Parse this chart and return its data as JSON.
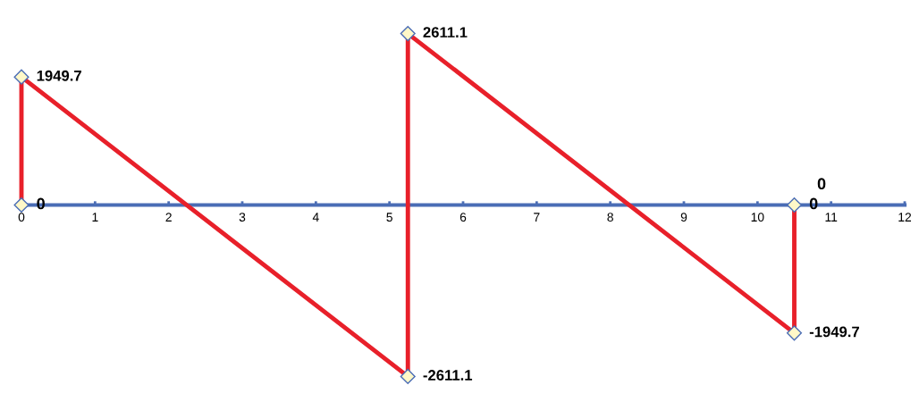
{
  "chart_data": {
    "type": "line",
    "marker": "diamond",
    "line_style": "solid",
    "grid": false,
    "tick_labels": "x",
    "data_labels": true,
    "xlim": [
      0,
      12
    ],
    "xticks": [
      0,
      1,
      2,
      3,
      4,
      5,
      6,
      7,
      8,
      9,
      10,
      11,
      12
    ],
    "series": [
      {
        "color": "#e8202a",
        "x": [
          0,
          0,
          5.25,
          5.25,
          10.5,
          10.5
        ],
        "values": [
          0,
          1949.7,
          -2611.1,
          2611.1,
          -1949.7,
          0
        ]
      }
    ],
    "annotations": [
      {
        "text": "0",
        "x": 10.5,
        "y": 0
      }
    ]
  }
}
